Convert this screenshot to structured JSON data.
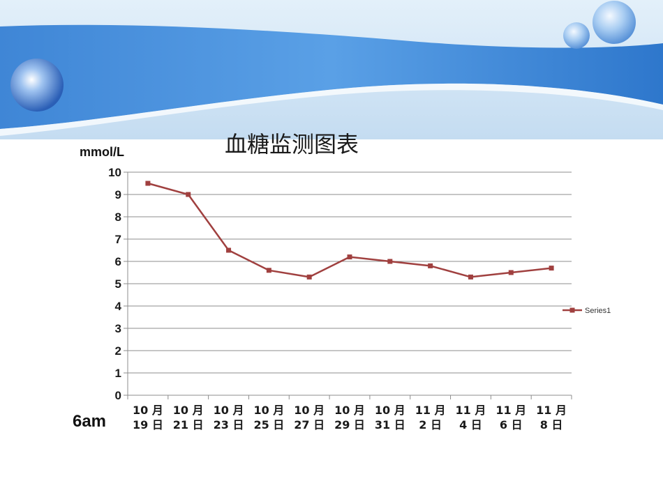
{
  "chart_data": {
    "type": "line",
    "title": "血糖监测图表",
    "ylabel": "mmol/L",
    "xlabel": "",
    "time_label": "6am",
    "ylim": [
      0,
      10
    ],
    "yticks": [
      0,
      1,
      2,
      3,
      4,
      5,
      6,
      7,
      8,
      9,
      10
    ],
    "grid": true,
    "legend_position": "right",
    "categories": [
      [
        "10 月",
        "19 日"
      ],
      [
        "10 月",
        "21 日"
      ],
      [
        "10 月",
        "23 日"
      ],
      [
        "10 月",
        "25 日"
      ],
      [
        "10 月",
        "27 日"
      ],
      [
        "10 月",
        "29 日"
      ],
      [
        "10 月",
        "31 日"
      ],
      [
        "11 月",
        "2 日"
      ],
      [
        "11 月",
        "4 日"
      ],
      [
        "11 月",
        "6 日"
      ],
      [
        "11 月",
        "8 日"
      ]
    ],
    "series": [
      {
        "name": "Series1",
        "color": "#a0403f",
        "values": [
          9.5,
          9.0,
          6.5,
          5.6,
          5.3,
          6.2,
          6.0,
          5.8,
          5.3,
          5.5,
          5.7
        ]
      }
    ]
  },
  "colors": {
    "banner_blue": "#4f93dc",
    "banner_light": "#c9e2f6",
    "grid": "#8c8c8c"
  }
}
